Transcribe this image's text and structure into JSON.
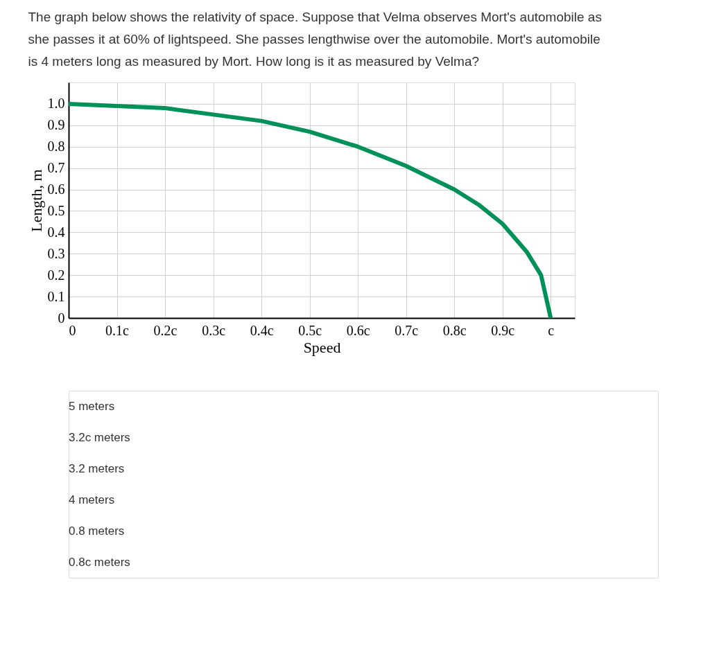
{
  "chart_data": {
    "type": "line",
    "title": "The graph below shows the relativity of space. Suppose that Velma observes Mort's automobile as she passes it at 60% of lightspeed. She passes lengthwise over the automobile. Mort's automobile is 4 meters long as measured by Mort. How long is it as measured by Velma?",
    "xlabel": "Speed",
    "ylabel": "Length, m",
    "x": [
      0,
      0.1,
      0.2,
      0.3,
      0.4,
      0.5,
      0.6,
      0.7,
      0.8,
      0.85,
      0.9,
      0.95,
      0.98,
      1.0
    ],
    "series": [
      {
        "color": "#00915a",
        "values": [
          1.0,
          0.99,
          0.98,
          0.95,
          0.92,
          0.87,
          0.8,
          0.71,
          0.6,
          0.53,
          0.44,
          0.31,
          0.2,
          0
        ]
      }
    ],
    "xlim": [
      0,
      1.05
    ],
    "xticks": [
      0,
      {
        "value": 0.1,
        "label": "0.1c"
      },
      {
        "value": 0.2,
        "label": "0.2c"
      },
      {
        "value": 0.3,
        "label": "0.3c"
      },
      {
        "value": 0.4,
        "label": "0.4c"
      },
      {
        "value": 0.5,
        "label": "0.5c"
      },
      {
        "value": 0.6,
        "label": "0.6c"
      },
      {
        "value": 0.7,
        "label": "0.7c"
      },
      {
        "value": 0.8,
        "label": "0.8c"
      },
      {
        "value": 0.9,
        "label": "0.9c"
      },
      {
        "value": 1,
        "label": "c"
      }
    ],
    "ylim": [
      0,
      1.1
    ],
    "yticks": [
      0,
      0.1,
      0.2,
      0.3,
      0.4,
      0.5,
      0.6,
      0.7,
      0.8,
      0.9,
      {
        "value": 1,
        "label": "1.0"
      }
    ],
    "grid": true,
    "marker": "none",
    "line_style": "solid",
    "annotations": [
      "5 meters",
      "3.2c meters",
      "3.2 meters",
      "4 meters",
      "0.8 meters",
      "0.8c meters"
    ]
  }
}
